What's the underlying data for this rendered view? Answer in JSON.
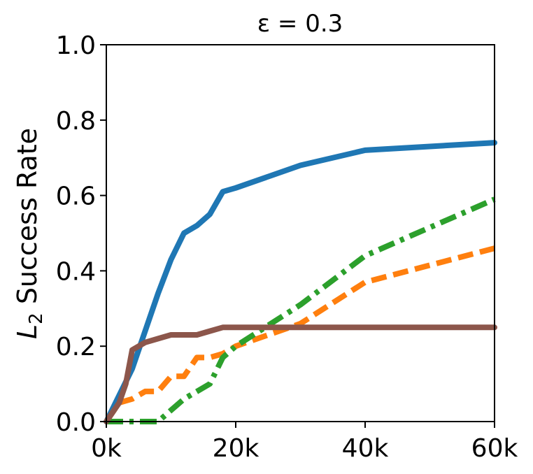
{
  "chart_data": {
    "type": "line",
    "title": "ε = 0.3",
    "ylabel_main": "L",
    "ylabel_sub": "2",
    "ylabel_rest": " Success Rate",
    "xlim": [
      0,
      60000
    ],
    "ylim": [
      0,
      1.0
    ],
    "xticks": [
      0,
      20000,
      40000,
      60000
    ],
    "xtick_labels": [
      "0k",
      "20k",
      "40k",
      "60k"
    ],
    "yticks": [
      0,
      0.2,
      0.4,
      0.6,
      0.8,
      1.0
    ],
    "ytick_labels": [
      "0.0",
      "0.2",
      "0.4",
      "0.6",
      "0.8",
      "1.0"
    ],
    "grid": false,
    "series": [
      {
        "color": "#1f77b4",
        "style": "solid",
        "x": [
          0,
          2000,
          4000,
          6000,
          8000,
          10000,
          12000,
          14000,
          16000,
          18000,
          20000,
          30000,
          40000,
          60000
        ],
        "y": [
          0.0,
          0.07,
          0.14,
          0.24,
          0.34,
          0.43,
          0.5,
          0.52,
          0.55,
          0.61,
          0.62,
          0.68,
          0.72,
          0.74
        ]
      },
      {
        "color": "#ff7f0e",
        "style": "dashed",
        "x": [
          0,
          2000,
          4000,
          6000,
          8000,
          10000,
          12000,
          14000,
          16000,
          18000,
          20000,
          30000,
          40000,
          60000
        ],
        "y": [
          0.0,
          0.05,
          0.06,
          0.08,
          0.08,
          0.12,
          0.12,
          0.17,
          0.17,
          0.18,
          0.2,
          0.26,
          0.37,
          0.46
        ]
      },
      {
        "color": "#2ca02c",
        "style": "dashdot",
        "x": [
          0,
          2000,
          4000,
          6000,
          8000,
          10000,
          12000,
          14000,
          16000,
          18000,
          20000,
          30000,
          40000,
          60000
        ],
        "y": [
          0.0,
          0.0,
          0.0,
          0.0,
          0.0,
          0.03,
          0.06,
          0.08,
          0.1,
          0.17,
          0.2,
          0.31,
          0.44,
          0.59
        ]
      },
      {
        "color": "#8c564b",
        "style": "solid",
        "x": [
          0,
          2000,
          3000,
          4000,
          6000,
          8000,
          10000,
          12000,
          14000,
          16000,
          18000,
          20000,
          30000,
          40000,
          60000
        ],
        "y": [
          0.0,
          0.05,
          0.1,
          0.19,
          0.21,
          0.22,
          0.23,
          0.23,
          0.23,
          0.24,
          0.25,
          0.25,
          0.25,
          0.25,
          0.25
        ]
      }
    ]
  }
}
